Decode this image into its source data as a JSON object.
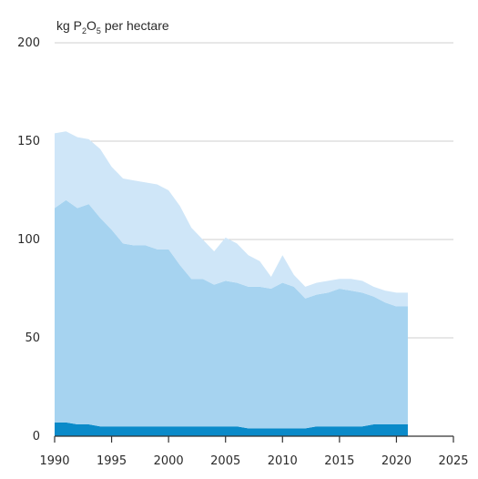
{
  "chart_data": {
    "type": "area",
    "stacked": true,
    "title": "",
    "ylabel": {
      "prefix": "kg P",
      "sub1": "2",
      "mid": "O",
      "sub2": "5",
      "suffix": " per hectare"
    },
    "xlabel": "",
    "xlim": [
      1990,
      2025
    ],
    "ylim": [
      0,
      200
    ],
    "x_ticks": [
      "1990",
      "1995",
      "2000",
      "2005",
      "2010",
      "2015",
      "2020",
      "2025"
    ],
    "y_ticks": [
      "0",
      "50",
      "100",
      "150",
      "200"
    ],
    "grid": true,
    "legend": "none",
    "x": [
      1990,
      1991,
      1992,
      1993,
      1994,
      1995,
      1996,
      1997,
      1998,
      1999,
      2000,
      2001,
      2002,
      2003,
      2004,
      2005,
      2006,
      2007,
      2008,
      2009,
      2010,
      2011,
      2012,
      2013,
      2014,
      2015,
      2016,
      2017,
      2018,
      2019,
      2020,
      2021
    ],
    "series": [
      {
        "color": "#0a8ac9",
        "values": [
          7,
          7,
          6,
          6,
          5,
          5,
          5,
          5,
          5,
          5,
          5,
          5,
          5,
          5,
          5,
          5,
          5,
          4,
          4,
          4,
          4,
          4,
          4,
          5,
          5,
          5,
          5,
          5,
          6,
          6,
          6,
          6
        ]
      },
      {
        "color": "#a6d3f0",
        "values": [
          109,
          113,
          110,
          112,
          106,
          100,
          93,
          92,
          92,
          90,
          90,
          82,
          75,
          75,
          72,
          74,
          73,
          72,
          72,
          71,
          74,
          72,
          66,
          67,
          68,
          70,
          69,
          68,
          65,
          62,
          60,
          60
        ]
      },
      {
        "color": "#cfe6f8",
        "values": [
          38,
          35,
          36,
          33,
          35,
          32,
          33,
          33,
          32,
          33,
          30,
          30,
          26,
          20,
          17,
          22,
          20,
          16,
          13,
          6,
          14,
          6,
          6,
          6,
          6,
          5,
          6,
          6,
          5,
          6,
          7,
          7
        ]
      }
    ]
  }
}
